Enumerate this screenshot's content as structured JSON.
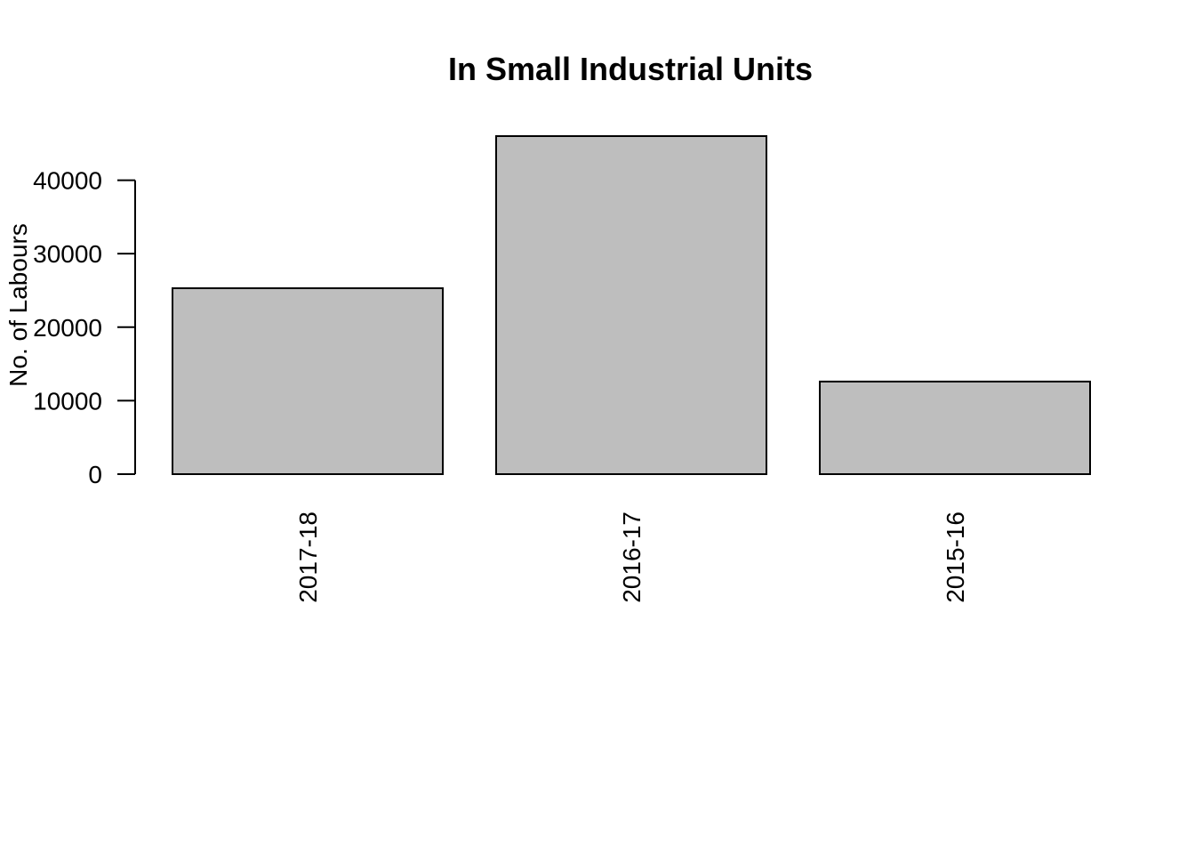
{
  "chart_data": {
    "type": "bar",
    "title": "In Small Industrial Units",
    "xlabel": "",
    "ylabel": "No. of Labours",
    "categories": [
      "2017-18",
      "2016-17",
      "2015-16"
    ],
    "values": [
      25300,
      46000,
      12600
    ],
    "ylim": [
      0,
      46000
    ],
    "y_ticks": [
      0,
      10000,
      20000,
      30000,
      40000
    ],
    "y_tick_labels": [
      "0",
      "10000",
      "20000",
      "30000",
      "40000"
    ],
    "x_tick_label_rotation": "vertical",
    "bar_fill": "#bebebe",
    "bar_stroke": "#000000",
    "grid": false,
    "legend": "none"
  }
}
